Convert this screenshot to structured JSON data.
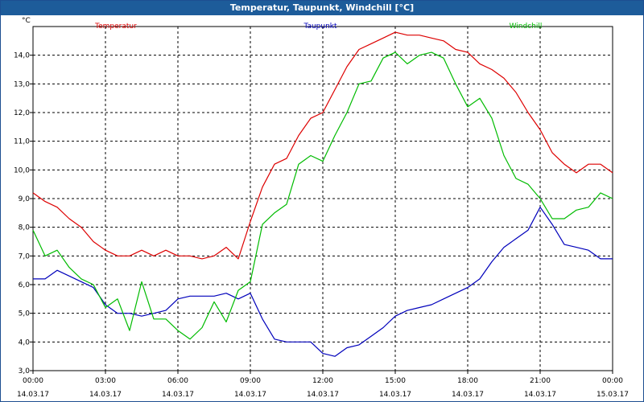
{
  "window": {
    "title": "Temperatur, Taupunkt, Windchill [°C]"
  },
  "chart_data": {
    "type": "line",
    "title": "Temperatur, Taupunkt, Windchill [°C]",
    "ylabel": "°C",
    "xlabel": "",
    "ylim": [
      3.0,
      15.0
    ],
    "yticks": [
      "3,0",
      "4,0",
      "5,0",
      "6,0",
      "7,0",
      "8,0",
      "9,0",
      "10,0",
      "11,0",
      "12,0",
      "13,0",
      "14,0"
    ],
    "yticks_values": [
      3,
      4,
      5,
      6,
      7,
      8,
      9,
      10,
      11,
      12,
      13,
      14
    ],
    "xlim": [
      0,
      24
    ],
    "xticks_hours": [
      0,
      3,
      6,
      9,
      12,
      15,
      18,
      21,
      24
    ],
    "xticks_time": [
      "00:00",
      "03:00",
      "06:00",
      "09:00",
      "12:00",
      "15:00",
      "18:00",
      "21:00",
      "00:00"
    ],
    "xticks_date": [
      "14.03.17",
      "14.03.17",
      "14.03.17",
      "14.03.17",
      "14.03.17",
      "14.03.17",
      "14.03.17",
      "14.03.17",
      "15.03.17"
    ],
    "grid": true,
    "series": [
      {
        "name": "Temperatur",
        "color": "#dd0000",
        "x": [
          0,
          0.5,
          1,
          1.5,
          2,
          2.5,
          3,
          3.5,
          4,
          4.5,
          5,
          5.5,
          6,
          6.5,
          7,
          7.5,
          8,
          8.5,
          9,
          9.5,
          10,
          10.5,
          11,
          11.5,
          12,
          12.5,
          13,
          13.5,
          14,
          14.5,
          15,
          15.5,
          16,
          16.5,
          17,
          17.5,
          18,
          18.5,
          19,
          19.5,
          20,
          20.5,
          21,
          21.5,
          22,
          22.5,
          23,
          23.5,
          24
        ],
        "values": [
          9.2,
          8.9,
          8.7,
          8.3,
          8.0,
          7.5,
          7.2,
          7.0,
          7.0,
          7.2,
          7.0,
          7.2,
          7.0,
          7.0,
          6.9,
          7.0,
          7.3,
          6.9,
          8.2,
          9.4,
          10.2,
          10.4,
          11.2,
          11.8,
          12.0,
          12.8,
          13.6,
          14.2,
          14.4,
          14.6,
          14.8,
          14.7,
          14.7,
          14.6,
          14.5,
          14.2,
          14.1,
          13.7,
          13.5,
          13.2,
          12.7,
          12.0,
          11.4,
          10.6,
          10.2,
          9.9,
          10.2,
          10.2,
          9.9
        ]
      },
      {
        "name": "Taupunkt",
        "color": "#0000bb",
        "x": [
          0,
          0.5,
          1,
          1.5,
          2,
          2.5,
          3,
          3.5,
          4,
          4.5,
          5,
          5.5,
          6,
          6.5,
          7,
          7.5,
          8,
          8.5,
          9,
          9.5,
          10,
          10.5,
          11,
          11.5,
          12,
          12.5,
          13,
          13.5,
          14,
          14.5,
          15,
          15.5,
          16,
          16.5,
          17,
          17.5,
          18,
          18.5,
          19,
          19.5,
          20,
          20.5,
          21,
          21.5,
          22,
          22.5,
          23,
          23.5,
          24
        ],
        "values": [
          6.2,
          6.2,
          6.5,
          6.3,
          6.1,
          5.9,
          5.3,
          5.0,
          5.0,
          4.9,
          5.0,
          5.1,
          5.5,
          5.6,
          5.6,
          5.6,
          5.7,
          5.5,
          5.7,
          4.8,
          4.1,
          4.0,
          4.0,
          4.0,
          3.6,
          3.5,
          3.8,
          3.9,
          4.2,
          4.5,
          4.9,
          5.1,
          5.2,
          5.3,
          5.5,
          5.7,
          5.9,
          6.2,
          6.8,
          7.3,
          7.6,
          7.9,
          8.7,
          8.1,
          7.4,
          7.3,
          7.2,
          6.9,
          6.9
        ]
      },
      {
        "name": "Windchill",
        "color": "#00bb00",
        "x": [
          0,
          0.5,
          1,
          1.5,
          2,
          2.5,
          3,
          3.5,
          4,
          4.5,
          5,
          5.5,
          6,
          6.5,
          7,
          7.5,
          8,
          8.5,
          9,
          9.5,
          10,
          10.5,
          11,
          11.5,
          12,
          12.5,
          13,
          13.5,
          14,
          14.5,
          15,
          15.5,
          16,
          16.5,
          17,
          17.5,
          18,
          18.5,
          19,
          19.5,
          20,
          20.5,
          21,
          21.5,
          22,
          22.5,
          23,
          23.5,
          24
        ],
        "values": [
          7.9,
          7.0,
          7.2,
          6.6,
          6.2,
          6.0,
          5.2,
          5.5,
          4.4,
          6.1,
          4.8,
          4.8,
          4.4,
          4.1,
          4.5,
          5.4,
          4.7,
          5.8,
          6.1,
          8.1,
          8.5,
          8.8,
          10.2,
          10.5,
          10.3,
          11.2,
          12.0,
          13.0,
          13.1,
          13.9,
          14.1,
          13.7,
          14.0,
          14.1,
          13.9,
          13.0,
          12.2,
          12.5,
          11.8,
          10.5,
          9.7,
          9.5,
          9.0,
          8.3,
          8.3,
          8.6,
          8.7,
          9.2,
          9.0
        ]
      }
    ]
  }
}
